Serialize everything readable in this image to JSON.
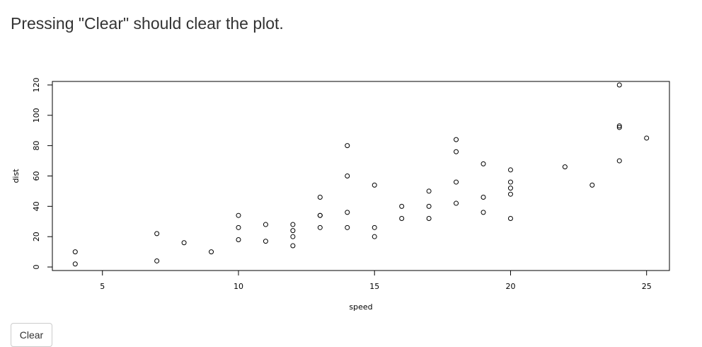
{
  "page": {
    "title": "Pressing \"Clear\" should clear the plot.",
    "clear_button_label": "Clear"
  },
  "chart_data": {
    "type": "scatter",
    "title": "",
    "xlabel": "speed",
    "ylabel": "dist",
    "xlim": [
      3.16,
      25.84
    ],
    "ylim": [
      -2.32,
      122.32
    ],
    "xticks": [
      5,
      10,
      15,
      20,
      25
    ],
    "yticks": [
      0,
      20,
      40,
      60,
      80,
      100,
      120
    ],
    "grid": false,
    "points": [
      [
        4,
        2
      ],
      [
        4,
        10
      ],
      [
        7,
        4
      ],
      [
        7,
        22
      ],
      [
        8,
        16
      ],
      [
        9,
        10
      ],
      [
        10,
        18
      ],
      [
        10,
        26
      ],
      [
        10,
        34
      ],
      [
        11,
        17
      ],
      [
        11,
        28
      ],
      [
        12,
        14
      ],
      [
        12,
        20
      ],
      [
        12,
        24
      ],
      [
        12,
        28
      ],
      [
        13,
        26
      ],
      [
        13,
        34
      ],
      [
        13,
        34
      ],
      [
        13,
        46
      ],
      [
        14,
        26
      ],
      [
        14,
        36
      ],
      [
        14,
        60
      ],
      [
        14,
        80
      ],
      [
        15,
        20
      ],
      [
        15,
        26
      ],
      [
        15,
        54
      ],
      [
        16,
        32
      ],
      [
        16,
        40
      ],
      [
        17,
        32
      ],
      [
        17,
        40
      ],
      [
        17,
        50
      ],
      [
        18,
        42
      ],
      [
        18,
        56
      ],
      [
        18,
        76
      ],
      [
        18,
        84
      ],
      [
        19,
        36
      ],
      [
        19,
        46
      ],
      [
        19,
        68
      ],
      [
        20,
        32
      ],
      [
        20,
        48
      ],
      [
        20,
        52
      ],
      [
        20,
        56
      ],
      [
        20,
        64
      ],
      [
        22,
        66
      ],
      [
        23,
        54
      ],
      [
        24,
        70
      ],
      [
        24,
        92
      ],
      [
        24,
        93
      ],
      [
        24,
        120
      ],
      [
        25,
        85
      ]
    ]
  }
}
